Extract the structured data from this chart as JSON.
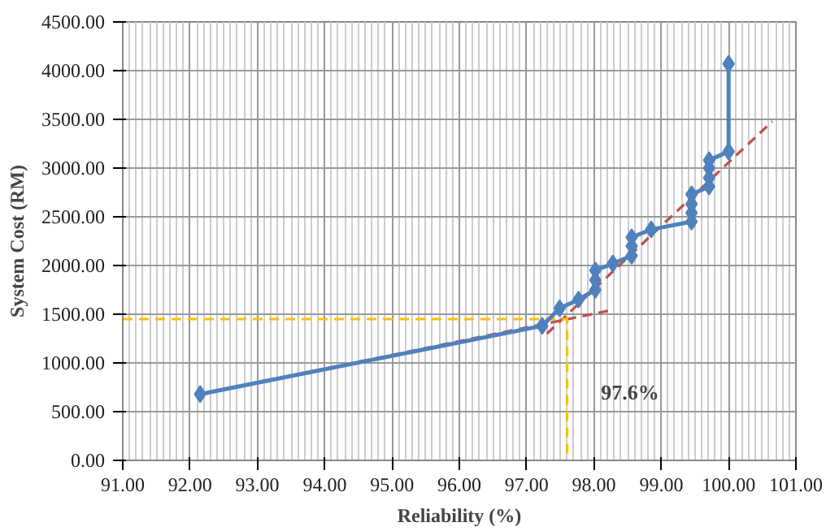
{
  "chart_data": {
    "type": "line",
    "xlabel": "Reliability (%)",
    "ylabel": "System Cost (RM)",
    "xlim": [
      91,
      101
    ],
    "ylim": [
      0,
      4500
    ],
    "xticks": [
      {
        "value": 91,
        "label": "91.00"
      },
      {
        "value": 92,
        "label": "92.00"
      },
      {
        "value": 93,
        "label": "93.00"
      },
      {
        "value": 94,
        "label": "94.00"
      },
      {
        "value": 95,
        "label": "95.00"
      },
      {
        "value": 96,
        "label": "96.00"
      },
      {
        "value": 97,
        "label": "97.00"
      },
      {
        "value": 98,
        "label": "98.00"
      },
      {
        "value": 99,
        "label": "99.00"
      },
      {
        "value": 100,
        "label": "100.00"
      },
      {
        "value": 101,
        "label": "101.00"
      }
    ],
    "yticks": [
      {
        "value": 0,
        "label": "0.00"
      },
      {
        "value": 500,
        "label": "500.00"
      },
      {
        "value": 1000,
        "label": "1000.00"
      },
      {
        "value": 1500,
        "label": "1500.00"
      },
      {
        "value": 2000,
        "label": "2000.00"
      },
      {
        "value": 2500,
        "label": "2500.00"
      },
      {
        "value": 3000,
        "label": "3000.00"
      },
      {
        "value": 3500,
        "label": "3500.00"
      },
      {
        "value": 4000,
        "label": "4000.00"
      },
      {
        "value": 4500,
        "label": "4500.00"
      }
    ],
    "grid": true,
    "series": [
      {
        "color": "#c0504d",
        "line_style": "dashed",
        "marker": "none",
        "x": [
          92.15,
          98.25
        ],
        "values": [
          680,
          1540
        ]
      },
      {
        "color": "#c0504d",
        "line_style": "dashed",
        "marker": "none",
        "x": [
          97.3,
          100.65
        ],
        "values": [
          1300,
          3480
        ]
      },
      {
        "color": "#ffc000",
        "line_style": "dashed",
        "marker": "none",
        "x": [
          91,
          97.6,
          97.6
        ],
        "values": [
          1450,
          1450,
          0
        ]
      },
      {
        "color": "#4f81bd",
        "line_style": "solid",
        "marker": "diamond",
        "x": [
          92.15,
          97.23,
          97.49,
          97.77,
          98.02,
          98.02,
          98.02,
          98.28,
          98.56,
          98.56,
          98.56,
          98.85,
          99.45,
          99.45,
          99.45,
          99.45,
          99.71,
          99.71,
          99.71,
          99.71,
          100.0,
          100.0
        ],
        "values": [
          680,
          1380,
          1560,
          1650,
          1750,
          1850,
          1950,
          2020,
          2100,
          2200,
          2290,
          2370,
          2450,
          2540,
          2630,
          2730,
          2810,
          2900,
          3000,
          3080,
          3170,
          4070
        ]
      }
    ],
    "annotations": [
      "97.6%"
    ]
  }
}
